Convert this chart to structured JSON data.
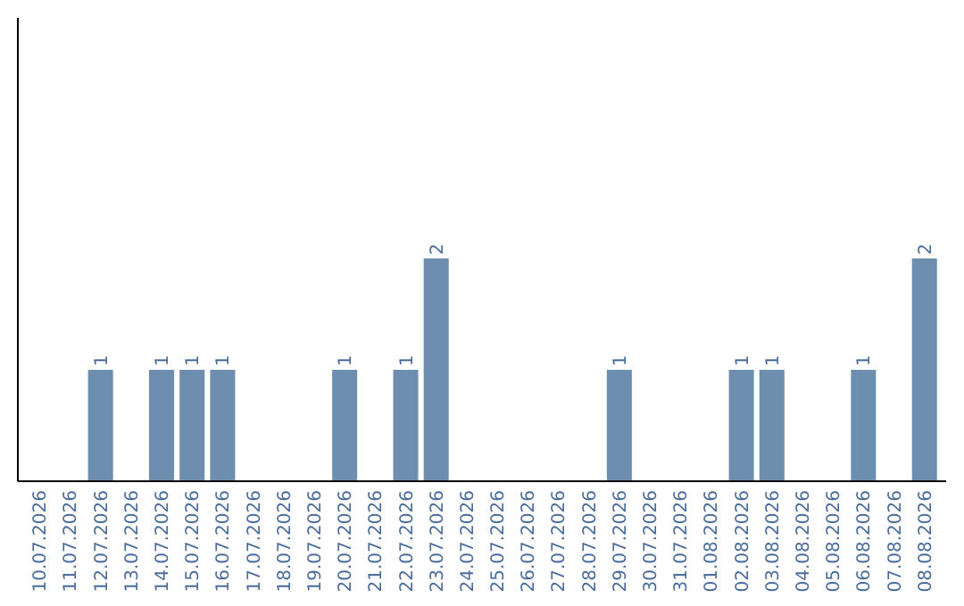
{
  "chart_data": {
    "type": "bar",
    "categories": [
      "10.07.2026",
      "11.07.2026",
      "12.07.2026",
      "13.07.2026",
      "14.07.2026",
      "15.07.2026",
      "16.07.2026",
      "17.07.2026",
      "18.07.2026",
      "19.07.2026",
      "20.07.2026",
      "21.07.2026",
      "22.07.2026",
      "23.07.2026",
      "24.07.2026",
      "25.07.2026",
      "26.07.2026",
      "27.07.2026",
      "28.07.2026",
      "29.07.2026",
      "30.07.2026",
      "31.07.2026",
      "01.08.2026",
      "02.08.2026",
      "03.08.2026",
      "04.08.2026",
      "05.08.2026",
      "06.08.2026",
      "07.08.2026",
      "08.08.2026"
    ],
    "values": [
      0,
      0,
      1,
      0,
      1,
      1,
      1,
      0,
      0,
      0,
      1,
      0,
      1,
      2,
      0,
      0,
      0,
      0,
      0,
      1,
      0,
      0,
      0,
      1,
      1,
      0,
      0,
      1,
      0,
      2
    ],
    "value_labels": [
      null,
      null,
      "1",
      null,
      "1",
      "1",
      "1",
      null,
      null,
      null,
      "1",
      null,
      "1",
      "2",
      null,
      null,
      null,
      null,
      null,
      "1",
      null,
      null,
      null,
      "1",
      "1",
      null,
      null,
      "1",
      null,
      "2"
    ],
    "color": "#6e8eaf",
    "ylim": [
      0,
      4.16
    ],
    "tick_labels": "x"
  }
}
